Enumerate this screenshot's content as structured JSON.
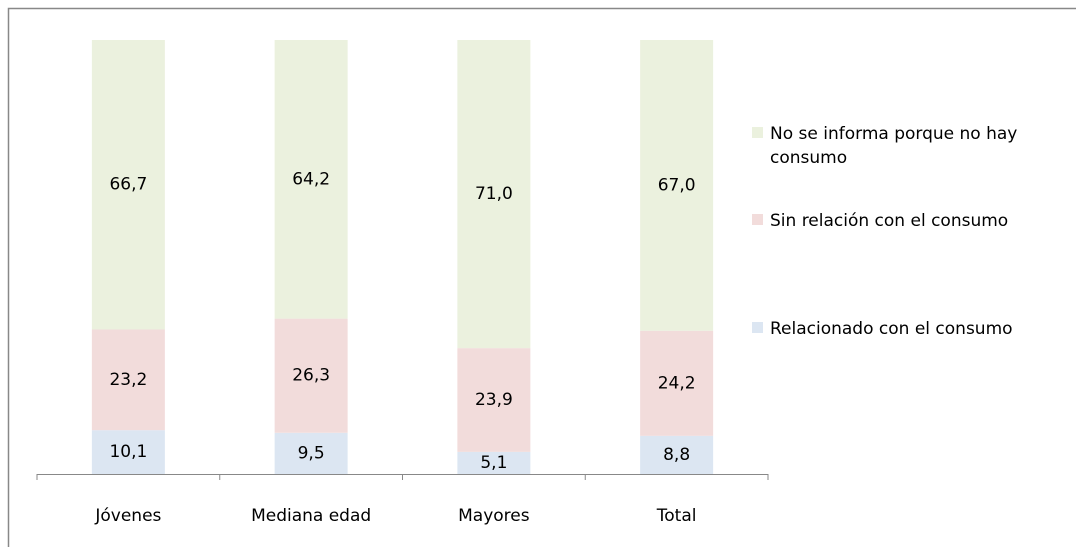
{
  "chart_data": {
    "type": "stacked_bar",
    "categories": [
      "Jóvenes",
      "Mediana edad",
      "Mayores",
      "Total"
    ],
    "ylim": [
      0,
      100
    ],
    "series": [
      {
        "name": "Relacionado con el consumo",
        "color": "#dce6f2",
        "values": [
          10.1,
          9.5,
          5.1,
          8.8
        ],
        "value_labels": [
          "10,1",
          "9,5",
          "5,1",
          "8,8"
        ]
      },
      {
        "name": "Sin relación con el consumo",
        "color": "#f2dcdb",
        "values": [
          23.2,
          26.3,
          23.9,
          24.2
        ],
        "value_labels": [
          "23,2",
          "26,3",
          "23,9",
          "24,2"
        ]
      },
      {
        "name": "No se informa porque no hay consumo",
        "color": "#ebf1de",
        "values": [
          66.7,
          64.2,
          71.0,
          67.0
        ],
        "value_labels": [
          "66,7",
          "64,2",
          "71,0",
          "67,0"
        ]
      }
    ]
  }
}
